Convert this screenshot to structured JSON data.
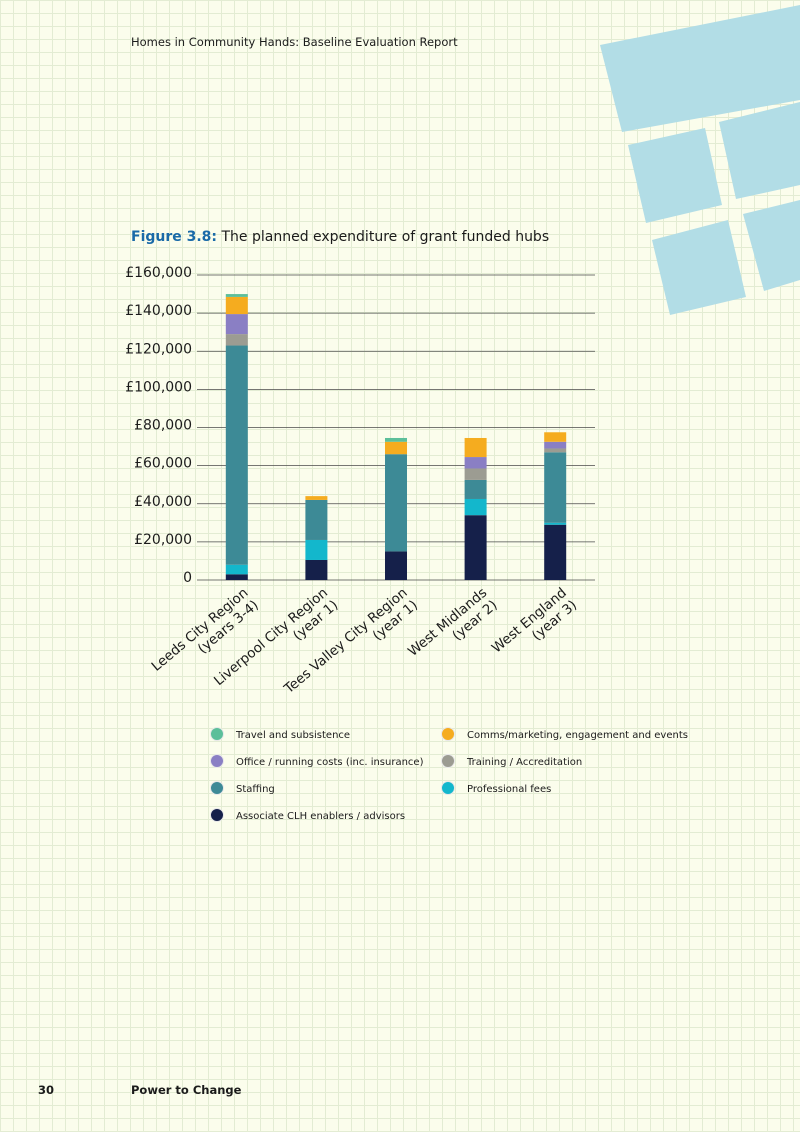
{
  "header": "Homes in Community Hands: Baseline Evaluation Report",
  "figure": {
    "label": "Figure 3.8:",
    "title": "The planned expenditure of grant funded hubs"
  },
  "chart_data": {
    "type": "stacked-bar",
    "categories": [
      [
        "Leeds City Region",
        "(years 3-4)"
      ],
      [
        "Liverpool City Region",
        "(year 1)"
      ],
      [
        "Tees Valley City Region",
        "(year 1)"
      ],
      [
        "West Midlands",
        "(year 2)"
      ],
      [
        "West England",
        "(year 3)"
      ]
    ],
    "series": [
      {
        "name": "Travel and subsistence",
        "color": "#5cbf9a",
        "values": [
          1500,
          0,
          2000,
          0,
          0
        ]
      },
      {
        "name": "Comms/marketing, engagement and events",
        "color": "#f5ac1f",
        "values": [
          9000,
          2000,
          6500,
          10000,
          5000
        ]
      },
      {
        "name": "Office / running costs (inc. insurance)",
        "color": "#8a7fc4",
        "values": [
          10500,
          0,
          0,
          6000,
          3500
        ]
      },
      {
        "name": "Training / Accreditation",
        "color": "#9c9c92",
        "values": [
          6000,
          0,
          0,
          6000,
          2000
        ]
      },
      {
        "name": "Staffing",
        "color": "#3d8a96",
        "values": [
          115000,
          21000,
          51000,
          10000,
          37000
        ]
      },
      {
        "name": "Professional fees",
        "color": "#13b7cc",
        "values": [
          5000,
          10500,
          0,
          8500,
          1000
        ]
      },
      {
        "name": "Associate CLH enablers / advisors",
        "color": "#15204a",
        "values": [
          3000,
          10500,
          15000,
          34000,
          29000
        ]
      }
    ],
    "ylim": [
      0,
      160000
    ],
    "yticks": [
      0,
      {
        "value": 20000,
        "label": "£20,000"
      },
      {
        "value": 40000,
        "label": "£40,000"
      },
      {
        "value": 60000,
        "label": "£60,000"
      },
      {
        "value": 80000,
        "label": "£80,000"
      },
      {
        "value": 100000,
        "label": "£100,000"
      },
      {
        "value": 120000,
        "label": "£120,000"
      },
      {
        "value": 140000,
        "label": "£140,000"
      },
      {
        "value": 160000,
        "label": "£160,000"
      }
    ],
    "grid": true
  },
  "footer": {
    "page": "30",
    "publisher": "Power to Change"
  }
}
